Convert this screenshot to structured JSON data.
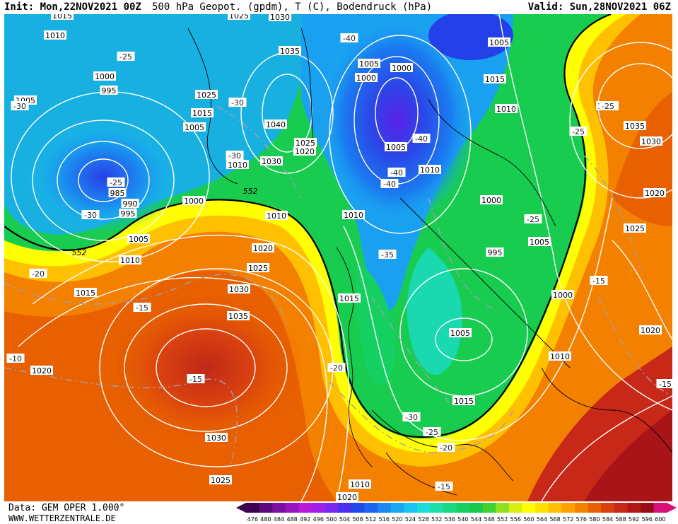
{
  "header": {
    "init": "Init: Mon,22NOV2021 00Z",
    "title": "500 hPa Geopot. (gpdm), T (C), Bodendruck (hPa)",
    "valid": "Valid: Sun,28NOV2021 06Z"
  },
  "footer": {
    "source": "Data: GEM OPER 1.000°",
    "website": "WWW.WETTERZENTRALE.DE"
  },
  "legend": {
    "values": [
      "476",
      "480",
      "484",
      "488",
      "492",
      "496",
      "500",
      "504",
      "508",
      "512",
      "516",
      "520",
      "524",
      "528",
      "532",
      "536",
      "540",
      "544",
      "548",
      "552",
      "556",
      "560",
      "564",
      "568",
      "572",
      "576",
      "580",
      "584",
      "588",
      "592",
      "596",
      "600"
    ],
    "colors": [
      "#3d0050",
      "#5a0a7a",
      "#7a0fa0",
      "#9a14c0",
      "#b81ad8",
      "#a020e8",
      "#7a28f0",
      "#4a30f0",
      "#2448e8",
      "#1a66f0",
      "#1a88f0",
      "#18a8f0",
      "#1ac4f0",
      "#1adcd8",
      "#1ae0a8",
      "#18d880",
      "#14d060",
      "#18c848",
      "#40d030",
      "#90e020",
      "#d8f010",
      "#ffff00",
      "#ffe000",
      "#ffc000",
      "#ffa000",
      "#f48000",
      "#e86000",
      "#d84010",
      "#c82818",
      "#b01818",
      "#980c14",
      "#d8107a"
    ]
  },
  "map": {
    "pressure_labels": [
      "1015",
      "1010",
      "1025",
      "1030",
      "1035",
      "1000",
      "995",
      "1005",
      "1025",
      "1015",
      "1005",
      "1030",
      "1040",
      "1025",
      "1020",
      "1010",
      "985",
      "990",
      "995",
      "1000",
      "1005",
      "1010",
      "1015",
      "1010",
      "1020",
      "1025",
      "1030",
      "1035",
      "1015",
      "1010",
      "1005",
      "1000",
      "1005",
      "1000",
      "1010",
      "1015",
      "1005",
      "1010",
      "1040",
      "1035",
      "1030",
      "1020",
      "1025",
      "1000",
      "995",
      "1005",
      "1020",
      "1010",
      "1015",
      "1020",
      "1030",
      "1025",
      "1020",
      "1010",
      "1005",
      "1000"
    ],
    "temp_labels": [
      "-25",
      "-30",
      "-30",
      "-25",
      "-30",
      "-30",
      "-40",
      "-40",
      "-40",
      "-40",
      "-25",
      "-25",
      "-25",
      "-35",
      "-20",
      "-15",
      "-15",
      "-10",
      "-15",
      "-20",
      "-30",
      "-25",
      "-20",
      "-15",
      "-15"
    ],
    "geopotential_labels": [
      "552",
      "552"
    ]
  }
}
